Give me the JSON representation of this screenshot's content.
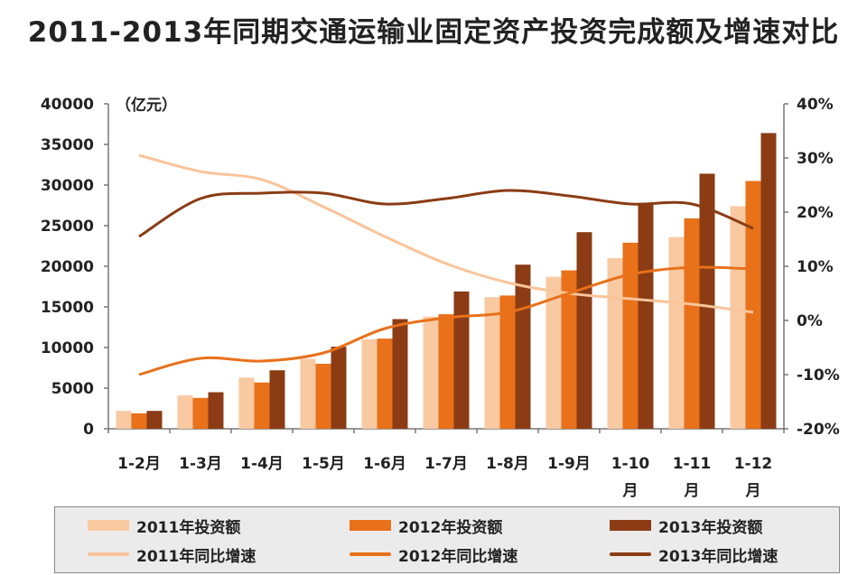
{
  "title": "2011-2013年同期交通运输业固定资产投资完成额及增速对比",
  "chart_data": {
    "type": "bar",
    "title": "2011-2013年同期交通运输业固定资产投资完成额及增速对比",
    "y_unit_label": "（亿元）",
    "categories": [
      "1-2月",
      "1-3月",
      "1-4月",
      "1-5月",
      "1-6月",
      "1-7月",
      "1-8月",
      "1-9月",
      "1-10月",
      "1-11月",
      "1-12月"
    ],
    "category_lines": [
      [
        "1-2月"
      ],
      [
        "1-3月"
      ],
      [
        "1-4月"
      ],
      [
        "1-5月"
      ],
      [
        "1-6月"
      ],
      [
        "1-7月"
      ],
      [
        "1-8月"
      ],
      [
        "1-9月"
      ],
      [
        "1-10",
        "月"
      ],
      [
        "1-11",
        "月"
      ],
      [
        "1-12",
        "月"
      ]
    ],
    "ylim": [
      0,
      40000
    ],
    "left_ticks": [
      "0",
      "5000",
      "10000",
      "15000",
      "20000",
      "25000",
      "30000",
      "35000",
      "40000"
    ],
    "y2lim": [
      -20,
      40
    ],
    "right_ticks": [
      "-20%",
      "-10%",
      "0%",
      "10%",
      "20%",
      "30%",
      "40%"
    ],
    "bar_series": [
      {
        "name": "2011年投资额",
        "color": "#f9c9a2",
        "values": [
          2200,
          4100,
          6300,
          8600,
          11000,
          13800,
          16200,
          18700,
          21000,
          23600,
          27400
        ]
      },
      {
        "name": "2012年投资额",
        "color": "#e8711a",
        "values": [
          1900,
          3800,
          5700,
          8000,
          11100,
          14100,
          16400,
          19500,
          22900,
          25900,
          30500
        ]
      },
      {
        "name": "2013年投资额",
        "color": "#8b3c14",
        "values": [
          2200,
          4500,
          7200,
          10100,
          13500,
          16900,
          20200,
          24200,
          27800,
          31400,
          36400
        ]
      }
    ],
    "line_series": [
      {
        "name": "2011年同比增速",
        "color": "#f9c49a",
        "values": [
          30.5,
          27.5,
          26.0,
          21.0,
          15.5,
          10.5,
          7.0,
          5.0,
          4.0,
          3.0,
          1.5
        ]
      },
      {
        "name": "2012年同比增速",
        "color": "#e8711a",
        "values": [
          -10.0,
          -7.0,
          -7.5,
          -6.0,
          -1.5,
          0.5,
          1.5,
          5.0,
          8.5,
          9.8,
          9.5
        ]
      },
      {
        "name": "2013年同比增速",
        "color": "#8b3c14",
        "values": [
          15.5,
          22.5,
          23.5,
          23.5,
          21.5,
          22.5,
          24.0,
          23.0,
          21.5,
          21.5,
          17.0
        ]
      }
    ]
  },
  "legend": {
    "bar_2011": "2011年投资额",
    "bar_2012": "2012年投资额",
    "bar_2013": "2013年投资额",
    "line_2011": "2011年同比增速",
    "line_2012": "2012年同比增速",
    "line_2013": "2013年同比增速"
  }
}
